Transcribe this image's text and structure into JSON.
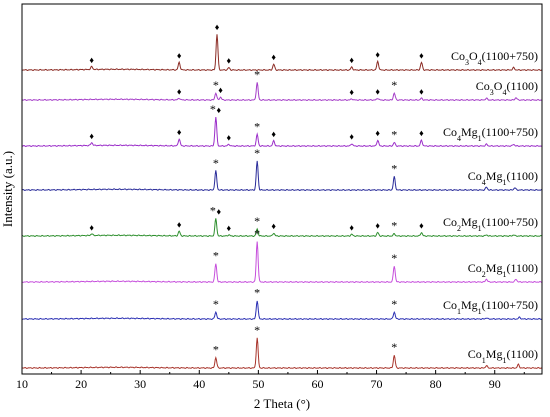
{
  "chart_data": {
    "type": "line",
    "xlabel": "2 Theta (°)",
    "ylabel": "Intensity (a.u.)",
    "xlim": [
      10,
      98
    ],
    "x_ticks": [
      "10",
      "20",
      "30",
      "40",
      "50",
      "60",
      "70",
      "80",
      "90"
    ],
    "grid": false,
    "markers": {
      "spinel": "♦",
      "rocksalt": "*"
    },
    "series": [
      {
        "name_parts": [
          "Co",
          "3",
          "O",
          "4",
          "(1100+750)"
        ],
        "color": "#8b2b24",
        "peaks": [
          {
            "x": 21.8,
            "h": 0.05,
            "mark": "♦"
          },
          {
            "x": 36.6,
            "h": 0.13,
            "mark": "♦"
          },
          {
            "x": 43.0,
            "h": 0.62,
            "mark": "♦"
          },
          {
            "x": 45.0,
            "h": 0.04,
            "mark": "♦"
          },
          {
            "x": 52.6,
            "h": 0.1,
            "mark": "♦"
          },
          {
            "x": 65.8,
            "h": 0.05,
            "mark": "♦"
          },
          {
            "x": 70.2,
            "h": 0.15,
            "mark": "♦"
          },
          {
            "x": 77.6,
            "h": 0.13,
            "mark": "♦"
          },
          {
            "x": 93.2,
            "h": 0.04,
            "mark": ""
          }
        ]
      },
      {
        "name_parts": [
          "Co",
          "3",
          "O",
          "4",
          "(1100)"
        ],
        "color": "#a53ec8",
        "peaks": [
          {
            "x": 36.6,
            "h": 0.03,
            "mark": "♦"
          },
          {
            "x": 42.8,
            "h": 0.12,
            "mark": "*"
          },
          {
            "x": 43.6,
            "h": 0.05,
            "mark": "♦"
          },
          {
            "x": 49.8,
            "h": 0.3,
            "mark": "*"
          },
          {
            "x": 65.8,
            "h": 0.02,
            "mark": "♦"
          },
          {
            "x": 70.2,
            "h": 0.03,
            "mark": "♦"
          },
          {
            "x": 73.0,
            "h": 0.12,
            "mark": "*"
          },
          {
            "x": 77.6,
            "h": 0.03,
            "mark": "♦"
          },
          {
            "x": 88.6,
            "h": 0.03,
            "mark": ""
          },
          {
            "x": 93.6,
            "h": 0.04,
            "mark": ""
          }
        ]
      },
      {
        "name_parts": [
          "Co",
          "4",
          "Mg",
          "1",
          "(1100+750)"
        ],
        "color": "#9b2ec9",
        "peaks": [
          {
            "x": 21.8,
            "h": 0.05,
            "mark": "♦"
          },
          {
            "x": 36.6,
            "h": 0.12,
            "mark": "♦"
          },
          {
            "x": 42.8,
            "h": 0.5,
            "mark": "*♦"
          },
          {
            "x": 45.0,
            "h": 0.03,
            "mark": "♦"
          },
          {
            "x": 49.8,
            "h": 0.2,
            "mark": "*"
          },
          {
            "x": 52.6,
            "h": 0.09,
            "mark": "♦"
          },
          {
            "x": 65.8,
            "h": 0.04,
            "mark": "♦"
          },
          {
            "x": 70.2,
            "h": 0.1,
            "mark": "♦"
          },
          {
            "x": 73.0,
            "h": 0.06,
            "mark": "*"
          },
          {
            "x": 77.6,
            "h": 0.1,
            "mark": "♦"
          },
          {
            "x": 88.6,
            "h": 0.03,
            "mark": ""
          },
          {
            "x": 93.2,
            "h": 0.03,
            "mark": ""
          }
        ]
      },
      {
        "name_parts": [
          "Co",
          "4",
          "Mg",
          "1",
          "(1100)"
        ],
        "color": "#2a2c9a",
        "peaks": [
          {
            "x": 42.8,
            "h": 0.33,
            "mark": "*"
          },
          {
            "x": 49.8,
            "h": 0.5,
            "mark": "*"
          },
          {
            "x": 73.0,
            "h": 0.23,
            "mark": "*"
          },
          {
            "x": 88.6,
            "h": 0.05,
            "mark": ""
          },
          {
            "x": 93.4,
            "h": 0.04,
            "mark": ""
          }
        ]
      },
      {
        "name_parts": [
          "Co",
          "2",
          "Mg",
          "1",
          "(1100+750)"
        ],
        "color": "#2e8f2e",
        "peaks": [
          {
            "x": 21.8,
            "h": 0.03,
            "mark": "♦"
          },
          {
            "x": 36.6,
            "h": 0.08,
            "mark": "♦"
          },
          {
            "x": 42.8,
            "h": 0.3,
            "mark": "*♦"
          },
          {
            "x": 45.0,
            "h": 0.02,
            "mark": "♦"
          },
          {
            "x": 49.8,
            "h": 0.12,
            "mark": "*"
          },
          {
            "x": 52.6,
            "h": 0.05,
            "mark": "♦"
          },
          {
            "x": 65.8,
            "h": 0.03,
            "mark": "♦"
          },
          {
            "x": 70.2,
            "h": 0.06,
            "mark": "♦"
          },
          {
            "x": 73.0,
            "h": 0.04,
            "mark": "*"
          },
          {
            "x": 77.6,
            "h": 0.06,
            "mark": "♦"
          },
          {
            "x": 88.6,
            "h": 0.02,
            "mark": ""
          },
          {
            "x": 93.2,
            "h": 0.02,
            "mark": ""
          }
        ]
      },
      {
        "name_parts": [
          "Co",
          "2",
          "Mg",
          "1",
          "(1100)"
        ],
        "color": "#c64fdc",
        "peaks": [
          {
            "x": 42.8,
            "h": 0.32,
            "mark": "*"
          },
          {
            "x": 49.8,
            "h": 0.7,
            "mark": "*"
          },
          {
            "x": 73.0,
            "h": 0.28,
            "mark": "*"
          },
          {
            "x": 88.6,
            "h": 0.05,
            "mark": ""
          },
          {
            "x": 93.6,
            "h": 0.05,
            "mark": ""
          }
        ]
      },
      {
        "name_parts": [
          "Co",
          "1",
          "Mg",
          "1",
          "(1100+750)"
        ],
        "color": "#2a2fb3",
        "peaks": [
          {
            "x": 42.8,
            "h": 0.12,
            "mark": "*"
          },
          {
            "x": 49.8,
            "h": 0.32,
            "mark": "*"
          },
          {
            "x": 73.0,
            "h": 0.12,
            "mark": "*"
          },
          {
            "x": 88.6,
            "h": 0.02,
            "mark": ""
          },
          {
            "x": 94.2,
            "h": 0.03,
            "mark": ""
          }
        ]
      },
      {
        "name_parts": [
          "Co",
          "1",
          "Mg",
          "1",
          "(1100)"
        ],
        "color": "#a8342b",
        "peaks": [
          {
            "x": 42.8,
            "h": 0.18,
            "mark": "*"
          },
          {
            "x": 49.8,
            "h": 0.52,
            "mark": "*"
          },
          {
            "x": 73.0,
            "h": 0.22,
            "mark": "*"
          },
          {
            "x": 88.6,
            "h": 0.04,
            "mark": ""
          },
          {
            "x": 94.0,
            "h": 0.06,
            "mark": ""
          }
        ]
      }
    ]
  }
}
